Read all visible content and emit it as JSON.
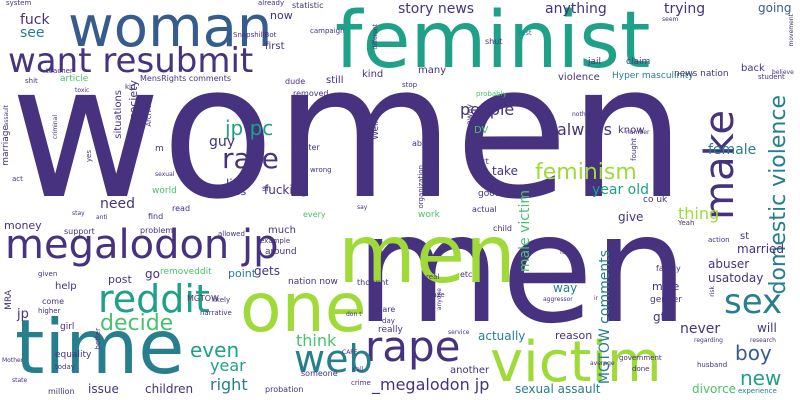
{
  "palette": {
    "background": "#ffffff",
    "dark_purple": "#46327e",
    "blue": "#365c8d",
    "teal_blue": "#277f8e",
    "teal": "#1fa187",
    "green": "#4ac16d",
    "lime": "#a0da39"
  },
  "words": {
    "women": "women",
    "men": "men",
    "feminist": "feminist",
    "woman": "woman",
    "time": "time",
    "one": "one",
    "victim": "victim",
    "want_resubmit": "want resubmit",
    "megalodon_jp": "megalodon jp",
    "reddit": "reddit",
    "rape": "rape",
    "web": "web",
    "sex": "sex",
    "make": "make",
    "domestic_violence": "domestic violence",
    "feminism": "feminism",
    "rate": "rate",
    "jp_pc": "jp pc",
    "decide": "decide",
    "even": "even",
    "year": "year",
    "right": "right",
    "boy": "boy",
    "new": "new",
    "think": "think",
    "megalodon_jp_2": "_megalodon jp",
    "people": "people",
    "always": "always",
    "thing": "thing",
    "year_old": "year old",
    "female": "female",
    "male_victim": "male victim",
    "mgtow_comments": "MGTOW comments",
    "story_news": "story news",
    "anything": "anything",
    "trying": "trying",
    "going": "going",
    "fuck": "fuck",
    "see": "see",
    "guy": "guy",
    "life": "life",
    "need": "need",
    "never": "never",
    "will": "will",
    "sexual_assault": "sexual assault",
    "divorce": "divorce",
    "children": "children",
    "issue": "issue",
    "gets": "gets",
    "point": "point",
    "way": "way",
    "usatoday": "usatoday",
    "abuser": "abuser",
    "married": "married",
    "gt": "gt",
    "give": "give",
    "actually": "actually",
    "reason": "reason",
    "money": "money",
    "fucking": "fucking",
    "take": "take",
    "hyper_masculinity": "Hyper masculinity",
    "news_nation": "news nation",
    "violence": "violence",
    "society": "society",
    "situations": "situations",
    "now": "now",
    "first": "first",
    "still": "still",
    "kind": "kind",
    "many": "many",
    "know": "know",
    "back": "back",
    "claim": "claim",
    "jail": "jail",
    "shut": "shut",
    "last": "last",
    "article": "article",
    "mensrights_comments": "MensRights comments",
    "removed": "removed",
    "dude": "dude",
    "campaign": "campaign",
    "statistic": "statistic",
    "already": "already",
    "snapshillbot": "SnapshillBot",
    "good": "good",
    "actual": "actual",
    "co_uk": "co uk",
    "court": "court",
    "dv": "DV",
    "abuse": "abuse",
    "shelter": "shelter",
    "sh": "sh",
    "ass": "ass",
    "much": "much",
    "around": "around",
    "nation_now": "nation now",
    "mgtow": "MGTOW",
    "go": "go",
    "removeddit": "removeddit",
    "post": "post",
    "help": "help",
    "jp": "jp",
    "mra": "MRA",
    "equality": "equality",
    "million": "million",
    "today": "today",
    "government": "government",
    "experience": "experience",
    "husband": "husband",
    "done": "done",
    "family": "family",
    "gender": "gender",
    "male": "male",
    "st": "st",
    "action": "action",
    "yeah": "Yeah",
    "child": "child",
    "work": "work",
    "organization": "organization",
    "every": "every",
    "world": "world",
    "support": "support",
    "problem": "problem",
    "find": "find",
    "read": "read",
    "allowed": "allowed",
    "example": "example",
    "thought": "thought",
    "care": "care",
    "day": "day",
    "really": "really",
    "another": "another",
    "crime": "crime",
    "someone": "someone",
    "probation": "probation",
    "cafe": "CAFE",
    "narrative": "narrative",
    "girl": "girl",
    "come": "come",
    "higher": "higher",
    "given": "given",
    "state": "state",
    "mother": "Mother",
    "act": "act",
    "marriage": "marriage",
    "system": "system",
    "assault": "assault",
    "teacher": "teacher",
    "shit": "shit",
    "toxic": "toxic",
    "kid": "kid",
    "archived": "Archived",
    "wrong": "wrong",
    "say": "say",
    "view": "view",
    "yet": "yet",
    "away": "away",
    "different": "different",
    "stop": "stop",
    "probably": "probably",
    "ton": "ton",
    "man": "man",
    "student": "student",
    "believe": "believe",
    "seem": "seem",
    "movement": "movement",
    "number": "number",
    "nothing": "nothing",
    "fought": "fought",
    "etc": "etc",
    "real": "real",
    "gaze": "gaze",
    "anyone": "anyone",
    "aggressor": "aggressor",
    "ir": "ir",
    "likely": "likely",
    "better": "better",
    "service": "service",
    "average": "average",
    "regarding": "regarding",
    "research": "research",
    "risk": "risk",
    "yes": "yes",
    "sexual": "sexual",
    "stay": "stay",
    "anti": "anti",
    "call": "call",
    "dont": "don t",
    "m": "m",
    "well": "Well",
    "criminal": "criminal",
    "fake": "fake"
  }
}
